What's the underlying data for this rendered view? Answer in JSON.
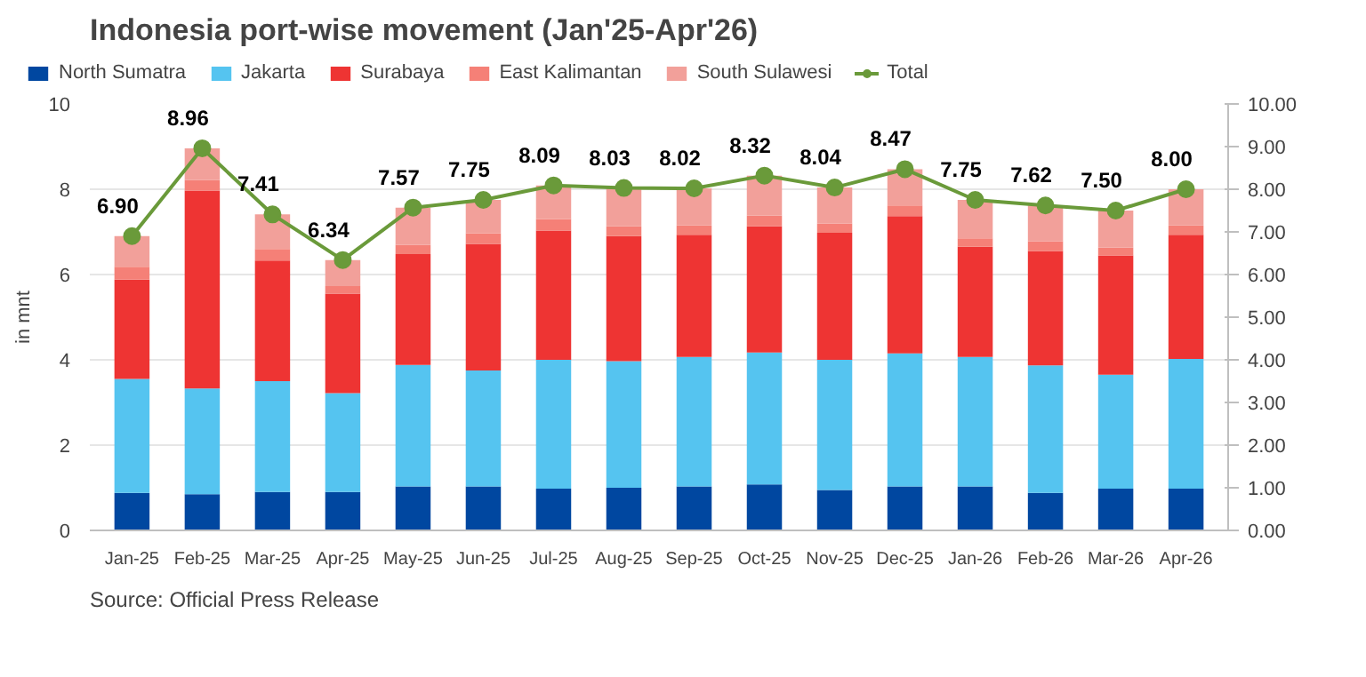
{
  "chart_data": {
    "type": "bar",
    "stacked": true,
    "title": "Indonesia port-wise movement (Jan'25-Apr'26)",
    "ylabel": "in mnt",
    "categories": [
      "Jan-25",
      "Feb-25",
      "Mar-25",
      "Apr-25",
      "May-25",
      "Jun-25",
      "Jul-25",
      "Aug-25",
      "Sep-25",
      "Oct-25",
      "Nov-25",
      "Dec-25",
      "Jan-26",
      "Feb-26",
      "Mar-26",
      "Apr-26"
    ],
    "series": [
      {
        "name": "North Sumatra",
        "color": "#0047a0",
        "values": [
          0.88,
          0.85,
          0.9,
          0.9,
          1.03,
          1.03,
          0.98,
          1.0,
          1.03,
          1.08,
          0.95,
          1.03,
          1.03,
          0.88,
          0.98,
          0.98
        ]
      },
      {
        "name": "Jakarta",
        "color": "#55c4f0",
        "values": [
          2.67,
          2.48,
          2.6,
          2.32,
          2.85,
          2.72,
          3.02,
          2.97,
          3.04,
          3.09,
          3.05,
          3.12,
          3.04,
          2.99,
          2.67,
          3.04
        ]
      },
      {
        "name": "Surabaya",
        "color": "#ee3433",
        "values": [
          2.33,
          4.64,
          2.83,
          2.33,
          2.6,
          2.97,
          3.03,
          2.93,
          2.86,
          2.96,
          2.98,
          3.22,
          2.58,
          2.68,
          2.8,
          2.91
        ]
      },
      {
        "name": "East Kalimantan",
        "color": "#f58077",
        "values": [
          0.3,
          0.25,
          0.27,
          0.18,
          0.22,
          0.25,
          0.27,
          0.23,
          0.22,
          0.25,
          0.22,
          0.25,
          0.2,
          0.23,
          0.18,
          0.22
        ]
      },
      {
        "name": "South Sulawesi",
        "color": "#f2a09a",
        "values": [
          0.72,
          0.74,
          0.81,
          0.61,
          0.87,
          0.78,
          0.79,
          0.9,
          0.87,
          0.94,
          0.84,
          0.85,
          0.9,
          0.84,
          0.87,
          0.85
        ]
      },
      {
        "name": "Total",
        "type": "line",
        "axis": "y2",
        "color": "#6a9a3a",
        "marker": "circle",
        "values": [
          6.9,
          8.96,
          7.41,
          6.34,
          7.57,
          7.75,
          8.09,
          8.03,
          8.02,
          8.32,
          8.04,
          8.47,
          7.75,
          7.62,
          7.5,
          8.0
        ],
        "value_labels": [
          "6.90",
          "8.96",
          "7.41",
          "6.34",
          "7.57",
          "7.75",
          "8.09",
          "8.03",
          "8.02",
          "8.32",
          "8.04",
          "8.47",
          "7.75",
          "7.62",
          "7.50",
          "8.00"
        ]
      }
    ],
    "ylim": [
      0,
      10
    ],
    "yticks": [
      0,
      2,
      4,
      6,
      8,
      10
    ],
    "y2lim": [
      0,
      10
    ],
    "y2ticks": [
      {
        "value": 0,
        "label": "0.00"
      },
      {
        "value": 1,
        "label": "1.00"
      },
      {
        "value": 2,
        "label": "2.00"
      },
      {
        "value": 3,
        "label": "3.00"
      },
      {
        "value": 4,
        "label": "4.00"
      },
      {
        "value": 5,
        "label": "5.00"
      },
      {
        "value": 6,
        "label": "6.00"
      },
      {
        "value": 7,
        "label": "7.00"
      },
      {
        "value": 8,
        "label": "8.00"
      },
      {
        "value": 9,
        "label": "9.00"
      },
      {
        "value": 10,
        "label": "10.00"
      }
    ],
    "grid": "y",
    "legend": "top",
    "annotations": [
      "Source: Official Press Release"
    ]
  }
}
